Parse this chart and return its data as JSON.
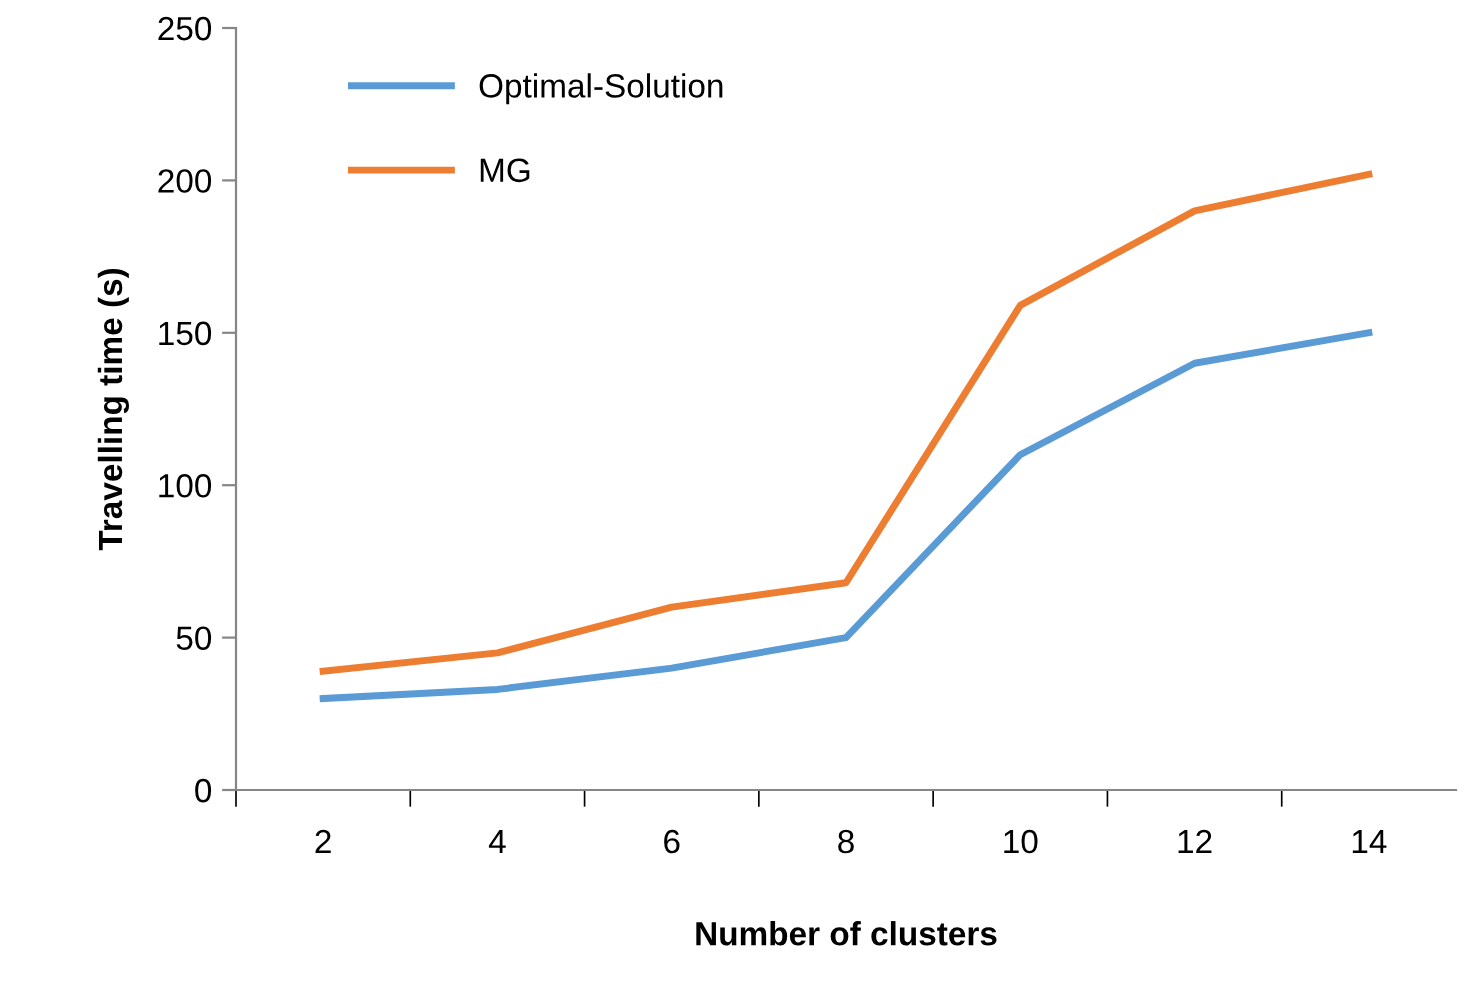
{
  "chart_data": {
    "type": "line",
    "xlabel": "Number of clusters",
    "ylabel": "Travelling time (s)",
    "categories": [
      "2",
      "4",
      "6",
      "8",
      "10",
      "12",
      "14"
    ],
    "series": [
      {
        "name": "Optimal-Solution",
        "color": "#5b9bd5",
        "values": [
          30,
          33,
          40,
          50,
          110,
          140,
          150
        ]
      },
      {
        "name": "MG",
        "color": "#ed7d31",
        "values": [
          39,
          45,
          60,
          68,
          159,
          190,
          202
        ]
      }
    ],
    "ylim": [
      0,
      250
    ],
    "yticks": [
      0,
      50,
      100,
      150,
      200,
      250
    ],
    "grid": false,
    "legend": "top left",
    "marker": "none",
    "line_style": "solid"
  }
}
